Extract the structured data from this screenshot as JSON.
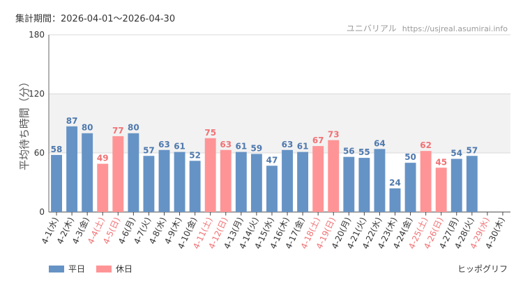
{
  "period_text": "集計期間：2026-04-01～2026-04-30",
  "credit": {
    "name": "ユニバリアル",
    "url": "https://usjreal.asumirai.info"
  },
  "footer_text": "ヒッポグリフ",
  "legend": [
    {
      "label": "平日",
      "color": "#6693c5"
    },
    {
      "label": "休日",
      "color": "#ff9496"
    }
  ],
  "colors": {
    "weekday": "#6693c5",
    "holiday": "#ff9496",
    "weekday_label": "#4f79ad",
    "holiday_label": "#f07275"
  },
  "chart_data": {
    "type": "bar",
    "ylabel": "平均待ち時間（分）",
    "ylim": [
      0,
      180
    ],
    "yticks": [
      0,
      60,
      120,
      180
    ],
    "highlight_band": [
      60,
      120
    ],
    "categories": [
      "4-1(水)",
      "4-2(木)",
      "4-3(金)",
      "4-4(土)",
      "4-5(日)",
      "4-6(月)",
      "4-7(火)",
      "4-8(水)",
      "4-9(木)",
      "4-10(金)",
      "4-11(土)",
      "4-12(日)",
      "4-13(月)",
      "4-14(火)",
      "4-15(水)",
      "4-16(木)",
      "4-17(金)",
      "4-18(土)",
      "4-19(日)",
      "4-20(月)",
      "4-21(火)",
      "4-22(水)",
      "4-23(木)",
      "4-24(金)",
      "4-25(土)",
      "4-26(日)",
      "4-27(月)",
      "4-28(火)",
      "4-29(水)",
      "4-30(木)"
    ],
    "day_type": [
      "weekday",
      "weekday",
      "weekday",
      "holiday",
      "holiday",
      "weekday",
      "weekday",
      "weekday",
      "weekday",
      "weekday",
      "holiday",
      "holiday",
      "weekday",
      "weekday",
      "weekday",
      "weekday",
      "weekday",
      "holiday",
      "holiday",
      "weekday",
      "weekday",
      "weekday",
      "weekday",
      "weekday",
      "holiday",
      "holiday",
      "weekday",
      "weekday",
      "holiday",
      "weekday"
    ],
    "values": [
      58,
      87,
      80,
      49,
      77,
      80,
      57,
      63,
      61,
      52,
      75,
      63,
      61,
      59,
      47,
      63,
      61,
      67,
      73,
      56,
      55,
      64,
      24,
      50,
      62,
      45,
      54,
      57,
      null,
      null
    ],
    "series": [
      {
        "name": "平日",
        "type": "weekday"
      },
      {
        "name": "休日",
        "type": "holiday"
      }
    ]
  }
}
